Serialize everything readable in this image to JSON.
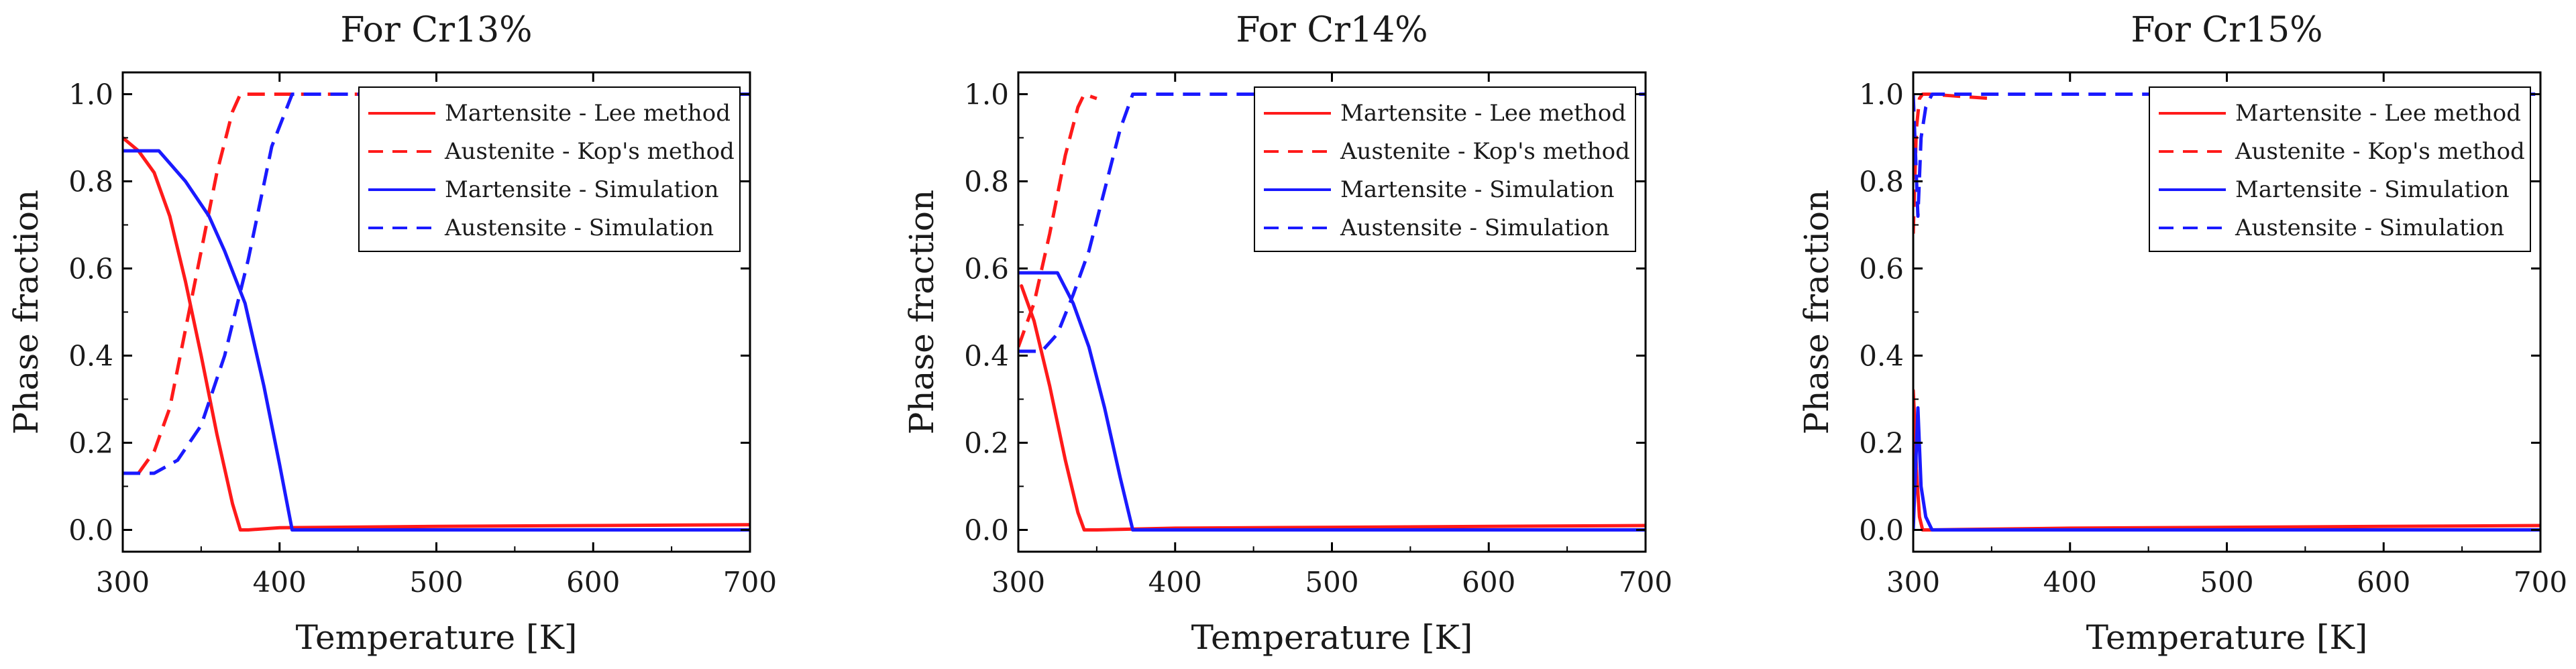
{
  "figure": {
    "colors": {
      "red": "#ff1a1a",
      "blue": "#1a1aff",
      "axis": "#000000"
    }
  },
  "chart_data": [
    {
      "type": "line",
      "title": "For Cr13%",
      "xlabel": "Temperature [K]",
      "ylabel": "Phase fraction",
      "xlim": [
        300,
        700
      ],
      "ylim": [
        -0.05,
        1.05
      ],
      "xticks": [
        "300",
        "400",
        "500",
        "600",
        "700"
      ],
      "yticks": [
        "0.0",
        "0.2",
        "0.4",
        "0.6",
        "0.8",
        "1.0"
      ],
      "legend": {
        "position": "top-right",
        "entries": [
          "Martensite - Lee method",
          "Austenite - Kop's method",
          "Martensite - Simulation",
          "Austensite - Simulation"
        ]
      },
      "series": [
        {
          "name": "Martensite - Lee method",
          "color": "red",
          "style": "solid",
          "x": [
            300,
            310,
            320,
            330,
            340,
            350,
            360,
            370,
            375,
            380,
            400,
            500,
            600,
            700
          ],
          "y": [
            0.9,
            0.87,
            0.82,
            0.72,
            0.57,
            0.4,
            0.22,
            0.06,
            0.0,
            0.0,
            0.005,
            0.008,
            0.01,
            0.012
          ]
        },
        {
          "name": "Austenite - Kop's method",
          "color": "red",
          "style": "dashed",
          "x": [
            310,
            320,
            330,
            340,
            350,
            360,
            370,
            375,
            700
          ],
          "y": [
            0.13,
            0.18,
            0.28,
            0.46,
            0.64,
            0.82,
            0.96,
            1.0,
            1.0
          ]
        },
        {
          "name": "Martensite - Simulation",
          "color": "blue",
          "style": "solid",
          "x": [
            300,
            323,
            340,
            355,
            365,
            378,
            390,
            400,
            408,
            450,
            700
          ],
          "y": [
            0.87,
            0.87,
            0.8,
            0.72,
            0.64,
            0.52,
            0.33,
            0.15,
            0.0,
            0.0,
            0.0
          ]
        },
        {
          "name": "Austensite - Simulation",
          "color": "blue",
          "style": "dashed",
          "x": [
            300,
            320,
            335,
            350,
            365,
            380,
            395,
            408,
            700
          ],
          "y": [
            0.13,
            0.13,
            0.16,
            0.24,
            0.4,
            0.62,
            0.88,
            1.0,
            1.0
          ]
        }
      ]
    },
    {
      "type": "line",
      "title": "For Cr14%",
      "xlabel": "Temperature [K]",
      "ylabel": "Phase fraction",
      "xlim": [
        300,
        700
      ],
      "ylim": [
        -0.05,
        1.05
      ],
      "xticks": [
        "300",
        "400",
        "500",
        "600",
        "700"
      ],
      "yticks": [
        "0.0",
        "0.2",
        "0.4",
        "0.6",
        "0.8",
        "1.0"
      ],
      "legend": {
        "position": "top-right",
        "entries": [
          "Martensite - Lee method",
          "Austenite - Kop's method",
          "Martensite - Simulation",
          "Austensite - Simulation"
        ]
      },
      "series": [
        {
          "name": "Martensite - Lee method",
          "color": "red",
          "style": "solid",
          "x": [
            302,
            310,
            320,
            330,
            338,
            342,
            350,
            400,
            500,
            600,
            700
          ],
          "y": [
            0.56,
            0.48,
            0.33,
            0.16,
            0.04,
            0.0,
            0.0,
            0.004,
            0.006,
            0.008,
            0.01
          ]
        },
        {
          "name": "Austenite - Kop's method",
          "color": "red",
          "style": "dashed",
          "x": [
            300,
            310,
            320,
            330,
            338,
            342,
            350
          ],
          "y": [
            0.42,
            0.52,
            0.68,
            0.86,
            0.97,
            1.0,
            0.99
          ]
        },
        {
          "name": "Martensite - Simulation",
          "color": "blue",
          "style": "solid",
          "x": [
            300,
            325,
            335,
            345,
            355,
            365,
            373,
            380,
            700
          ],
          "y": [
            0.59,
            0.59,
            0.52,
            0.42,
            0.28,
            0.12,
            0.0,
            0.0,
            0.0
          ]
        },
        {
          "name": "Austensite - Simulation",
          "color": "blue",
          "style": "dashed",
          "x": [
            300,
            315,
            325,
            335,
            345,
            355,
            365,
            373,
            700
          ],
          "y": [
            0.41,
            0.41,
            0.45,
            0.54,
            0.64,
            0.78,
            0.92,
            1.0,
            1.0
          ]
        }
      ]
    },
    {
      "type": "line",
      "title": "For Cr15%",
      "xlabel": "Temperature [K]",
      "ylabel": "Phase fraction",
      "xlim": [
        300,
        700
      ],
      "ylim": [
        -0.05,
        1.05
      ],
      "xticks": [
        "300",
        "400",
        "500",
        "600",
        "700"
      ],
      "yticks": [
        "0.0",
        "0.2",
        "0.4",
        "0.6",
        "0.8",
        "1.0"
      ],
      "legend": {
        "position": "top-right",
        "entries": [
          "Martensite - Lee method",
          "Austenite - Kop's method",
          "Martensite - Simulation",
          "Austensite - Simulation"
        ]
      },
      "series": [
        {
          "name": "Martensite - Lee method",
          "color": "red",
          "style": "solid",
          "x": [
            300,
            301,
            302,
            304,
            306,
            310,
            400,
            500,
            600,
            700
          ],
          "y": [
            0.32,
            0.25,
            0.14,
            0.03,
            0.0,
            0.0,
            0.004,
            0.006,
            0.008,
            0.01
          ]
        },
        {
          "name": "Austenite - Kop's method",
          "color": "red",
          "style": "dashed",
          "x": [
            300,
            301,
            302,
            304,
            306,
            310,
            350
          ],
          "y": [
            0.68,
            0.8,
            0.92,
            0.99,
            1.0,
            1.0,
            0.99
          ]
        },
        {
          "name": "Martensite - Simulation",
          "color": "blue",
          "style": "solid",
          "x": [
            300,
            303,
            305,
            308,
            312,
            320,
            700
          ],
          "y": [
            0.0,
            0.28,
            0.1,
            0.03,
            0.0,
            0.0,
            0.0
          ]
        },
        {
          "name": "Austensite - Simulation",
          "color": "blue",
          "style": "dashed",
          "x": [
            300,
            303,
            305,
            308,
            312,
            320,
            700
          ],
          "y": [
            1.0,
            0.72,
            0.9,
            0.97,
            1.0,
            1.0,
            1.0
          ]
        }
      ]
    }
  ]
}
